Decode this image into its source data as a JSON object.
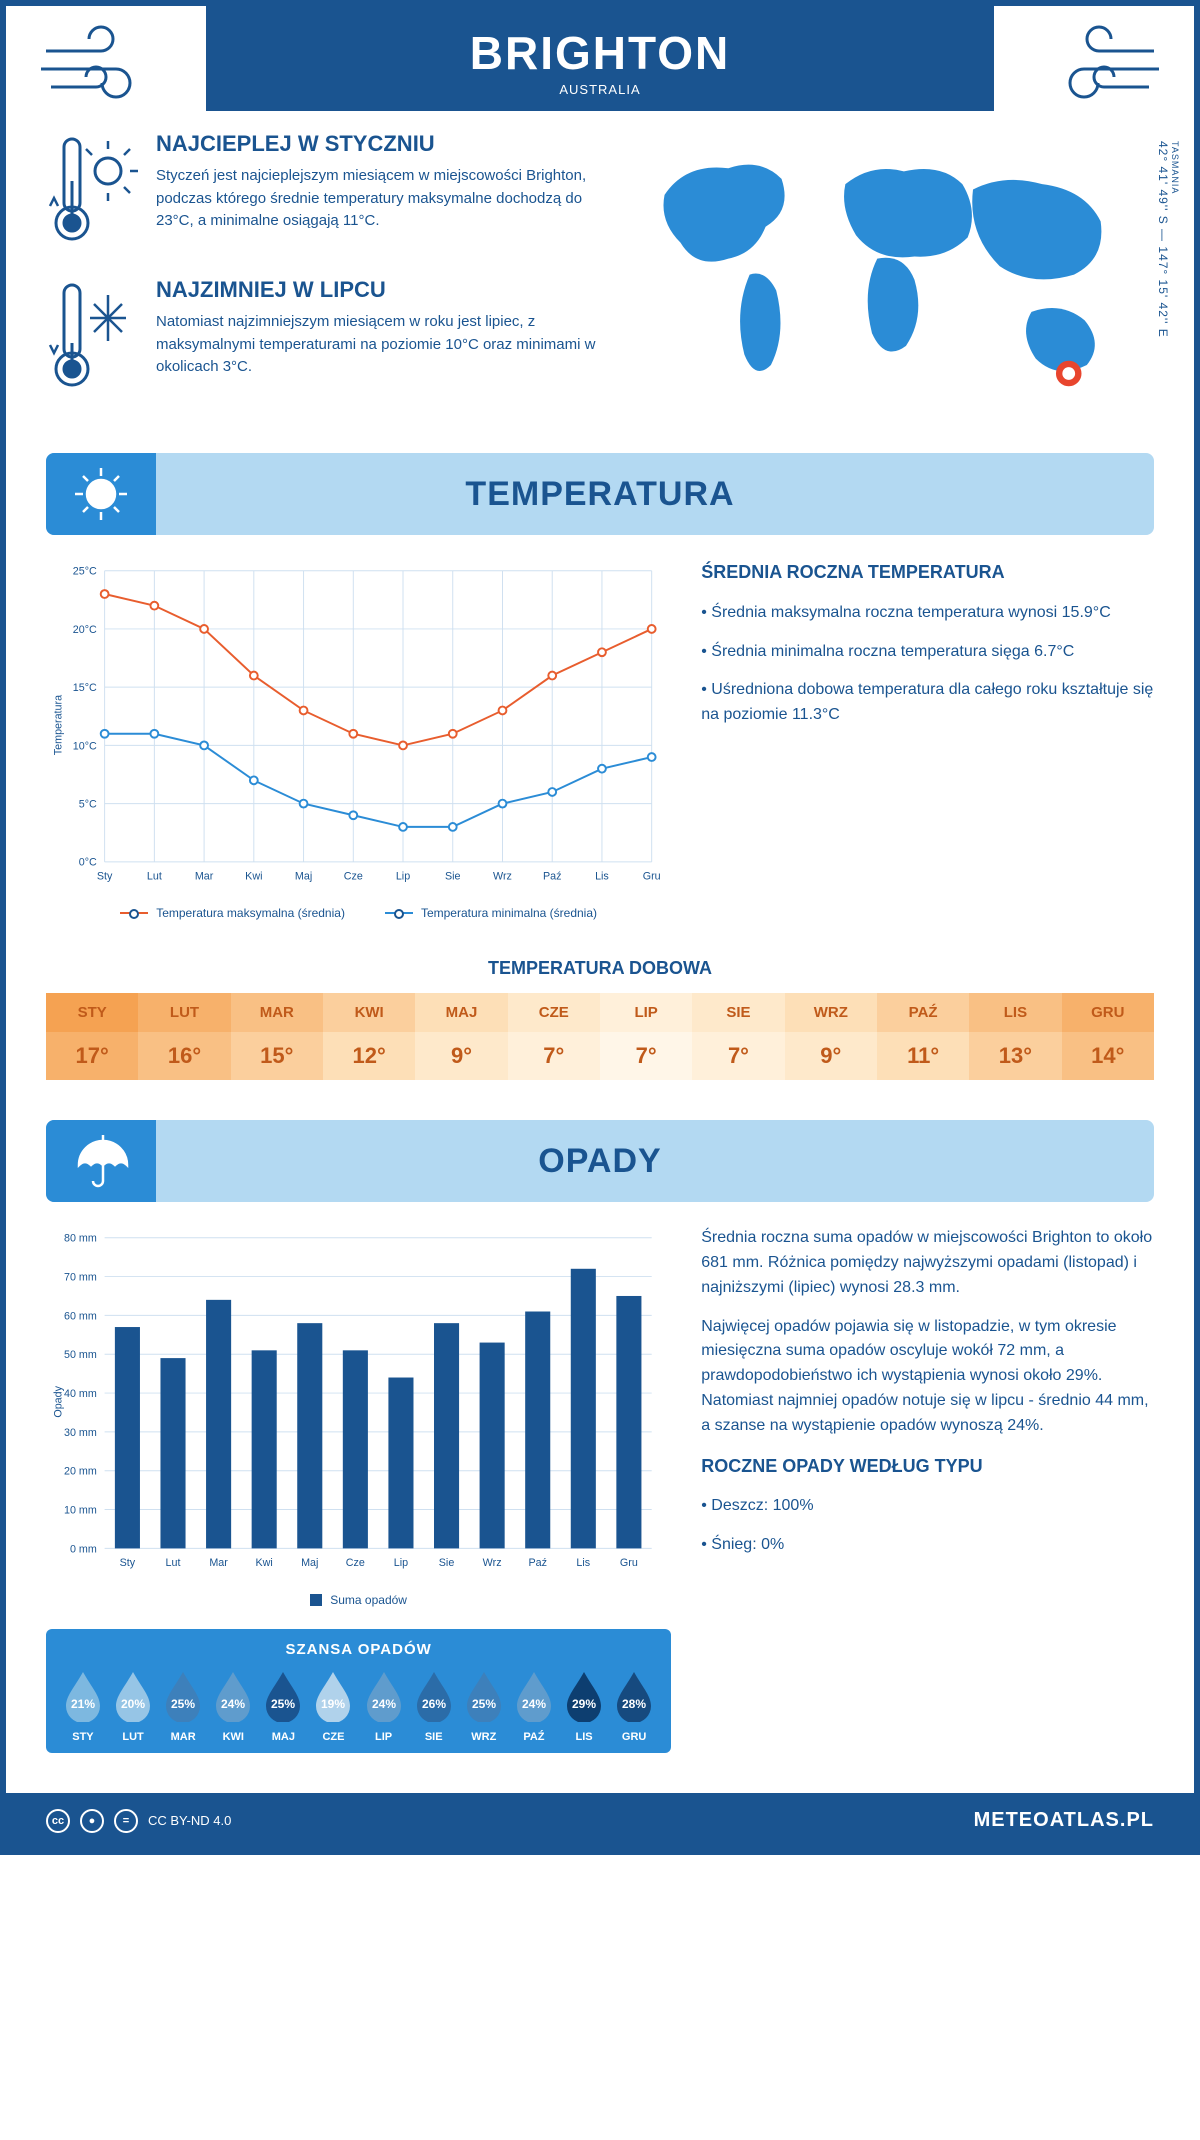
{
  "header": {
    "city": "BRIGHTON",
    "country": "AUSTRALIA"
  },
  "info": {
    "warm": {
      "title": "NAJCIEPLEJ W STYCZNIU",
      "body": "Styczeń jest najcieplejszym miesiącem w miejscowości Brighton, podczas którego średnie temperatury maksymalne dochodzą do 23°C, a minimalne osiągają 11°C."
    },
    "cold": {
      "title": "NAJZIMNIEJ W LIPCU",
      "body": "Natomiast najzimniejszym miesiącem w roku jest lipiec, z maksymalnymi temperaturami na poziomie 10°C oraz minimami w okolicach 3°C."
    }
  },
  "coords": {
    "region": "TASMANIA",
    "text": "42° 41' 49'' S — 147° 15' 42'' E"
  },
  "months": [
    "Sty",
    "Lut",
    "Mar",
    "Kwi",
    "Maj",
    "Cze",
    "Lip",
    "Sie",
    "Wrz",
    "Paź",
    "Lis",
    "Gru"
  ],
  "months_uc": [
    "STY",
    "LUT",
    "MAR",
    "KWI",
    "MAJ",
    "CZE",
    "LIP",
    "SIE",
    "WRZ",
    "PAŹ",
    "LIS",
    "GRU"
  ],
  "temp_section": {
    "title": "TEMPERATURA",
    "chart": {
      "ylabel": "Temperatura",
      "ylim": [
        0,
        25
      ],
      "ytick_step": 5,
      "yticks": [
        "0°C",
        "5°C",
        "10°C",
        "15°C",
        "20°C",
        "25°C"
      ],
      "series_max": {
        "label": "Temperatura maksymalna (średnia)",
        "color": "#e85d2e",
        "values": [
          23,
          22,
          20,
          16,
          13,
          11,
          10,
          11,
          13,
          16,
          18,
          20
        ]
      },
      "series_min": {
        "label": "Temperatura minimalna (średnia)",
        "color": "#2b8cd6",
        "values": [
          11,
          11,
          10,
          7,
          5,
          4,
          3,
          3,
          5,
          6,
          8,
          9
        ]
      },
      "grid_color": "#cfe0f0",
      "background": "#ffffff",
      "line_width": 2,
      "marker_size": 4
    },
    "annual": {
      "title": "ŚREDNIA ROCZNA TEMPERATURA",
      "b1": "• Średnia maksymalna roczna temperatura wynosi 15.9°C",
      "b2": "• Średnia minimalna roczna temperatura sięga 6.7°C",
      "b3": "• Uśredniona dobowa temperatura dla całego roku kształtuje się na poziomie 11.3°C"
    },
    "dobowa": {
      "title": "TEMPERATURA DOBOWA",
      "values": [
        "17°",
        "16°",
        "15°",
        "12°",
        "9°",
        "7°",
        "7°",
        "7°",
        "9°",
        "11°",
        "13°",
        "14°"
      ],
      "head_colors": [
        "#f5a252",
        "#f7b16b",
        "#f9c084",
        "#fbcf9d",
        "#fddfb7",
        "#fee9cb",
        "#fff0da",
        "#fee9cb",
        "#fddfb7",
        "#fbcf9d",
        "#f9c084",
        "#f7b16b"
      ],
      "val_colors": [
        "#f7b16b",
        "#f9c084",
        "#fbcf9d",
        "#fddfb7",
        "#fee9cb",
        "#fff0da",
        "#fff6e8",
        "#fff0da",
        "#fee9cb",
        "#fddfb7",
        "#fbcf9d",
        "#f9c084"
      ]
    }
  },
  "rain_section": {
    "title": "OPADY",
    "chart": {
      "ylabel": "Opady",
      "ylim": [
        0,
        80
      ],
      "ytick_step": 10,
      "yticks": [
        "0 mm",
        "10 mm",
        "20 mm",
        "30 mm",
        "40 mm",
        "50 mm",
        "60 mm",
        "70 mm",
        "80 mm"
      ],
      "bar_color": "#1a5490",
      "grid_color": "#cfe0f0",
      "values": [
        57,
        49,
        64,
        51,
        58,
        51,
        44,
        58,
        53,
        61,
        72,
        65
      ],
      "legend": "Suma opadów",
      "bar_width": 0.55
    },
    "text": {
      "p1": "Średnia roczna suma opadów w miejscowości Brighton to około 681 mm. Różnica pomiędzy najwyższymi opadami (listopad) i najniższymi (lipiec) wynosi 28.3 mm.",
      "p2": "Najwięcej opadów pojawia się w listopadzie, w tym okresie miesięczna suma opadów oscyluje wokół 72 mm, a prawdopodobieństwo ich wystąpienia wynosi około 29%. Natomiast najmniej opadów notuje się w lipcu - średnio 44 mm, a szanse na wystąpienie opadów wynoszą 24%.",
      "type_title": "ROCZNE OPADY WEDŁUG TYPU",
      "type1": "• Deszcz: 100%",
      "type2": "• Śnieg: 0%"
    },
    "szansa": {
      "title": "SZANSA OPADÓW",
      "pct": [
        "21%",
        "20%",
        "25%",
        "24%",
        "25%",
        "19%",
        "24%",
        "26%",
        "25%",
        "24%",
        "29%",
        "28%"
      ],
      "colors": [
        "#7db8e0",
        "#96c5e6",
        "#3d80bb",
        "#5f9ccd",
        "#1a5490",
        "#b0d2eb",
        "#5f9ccd",
        "#2b6ca8",
        "#3d80bb",
        "#5f9ccd",
        "#0d3e70",
        "#164a7f"
      ]
    }
  },
  "footer": {
    "license": "CC BY-ND 4.0",
    "site": "METEOATLAS.PL"
  }
}
